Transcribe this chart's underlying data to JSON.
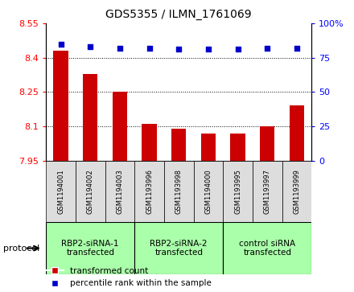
{
  "title": "GDS5355 / ILMN_1761069",
  "samples": [
    "GSM1194001",
    "GSM1194002",
    "GSM1194003",
    "GSM1193996",
    "GSM1193998",
    "GSM1194000",
    "GSM1193995",
    "GSM1193997",
    "GSM1193999"
  ],
  "transformed_count": [
    8.43,
    8.33,
    8.25,
    8.11,
    8.09,
    8.07,
    8.07,
    8.1,
    8.19
  ],
  "percentile_rank": [
    85,
    83,
    82,
    82,
    81,
    81,
    81,
    82,
    82
  ],
  "ylim_left": [
    7.95,
    8.55
  ],
  "ylim_right": [
    0,
    100
  ],
  "yticks_left": [
    7.95,
    8.1,
    8.25,
    8.4,
    8.55
  ],
  "yticks_right": [
    0,
    25,
    50,
    75,
    100
  ],
  "ytick_labels_right": [
    "0",
    "25",
    "50",
    "75",
    "100%"
  ],
  "bar_color": "#cc0000",
  "dot_color": "#0000cc",
  "gridline_y": [
    8.1,
    8.25,
    8.4
  ],
  "protocol_groups": [
    {
      "label": "RBP2-siRNA-1\ntransfected",
      "start": 0,
      "end": 3,
      "color": "#aaffaa"
    },
    {
      "label": "RBP2-siRNA-2\ntransfected",
      "start": 3,
      "end": 6,
      "color": "#aaffaa"
    },
    {
      "label": "control siRNA\ntransfected",
      "start": 6,
      "end": 9,
      "color": "#aaffaa"
    }
  ],
  "protocol_label": "protocol",
  "legend_bar_label": "transformed count",
  "legend_dot_label": "percentile rank within the sample",
  "bar_color_hex": "#cc0000",
  "dot_color_hex": "#0000cc",
  "background_color": "#ffffff",
  "plot_bg_color": "#f0f0f0"
}
